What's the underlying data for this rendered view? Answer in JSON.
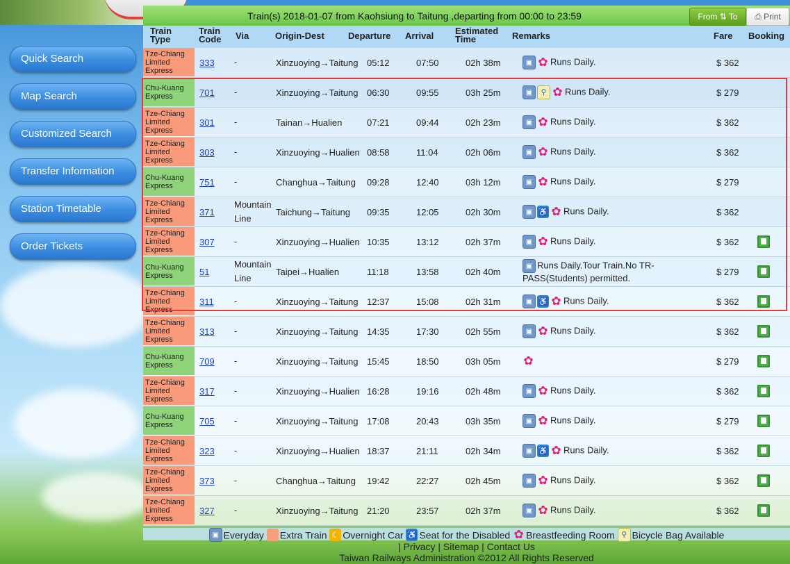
{
  "header": {
    "title": "Train(s) 2018-01-07 from Kaohsiung to Taitung ,departing from 00:00 to 23:59",
    "from_to_label": "From ⇅ To",
    "print_label": "Print"
  },
  "sidebar": {
    "items": [
      {
        "label": "Quick Search"
      },
      {
        "label": "Map Search"
      },
      {
        "label": "Customized Search"
      },
      {
        "label": "Transfer Information"
      },
      {
        "label": "Station Timetable"
      },
      {
        "label": "Order Tickets"
      }
    ]
  },
  "columns": {
    "train_type": "Train Type",
    "train_code": "Train Code",
    "via": "Via",
    "origin_dest": "Origin-Dest",
    "departure": "Departure",
    "arrival": "Arrival",
    "estimated": "Estimated Time",
    "remarks": "Remarks",
    "fare": "Fare",
    "booking": "Booking"
  },
  "rows": [
    {
      "type": "Tze-Chiang Limited Express",
      "kind": "tz",
      "code": "333",
      "via": "-",
      "od": "Xinzuoying→Taitung",
      "dep": "05:12",
      "arr": "07:50",
      "est": "02h 38m",
      "icons": [
        "everyday",
        "breast"
      ],
      "remark": "Runs Daily.",
      "fare": "$ 362",
      "booking": false
    },
    {
      "type": "Chu-Kuang Express",
      "kind": "ck",
      "code": "701",
      "via": "-",
      "od": "Xinzuoying→Taitung",
      "dep": "06:30",
      "arr": "09:55",
      "est": "03h 25m",
      "icons": [
        "everyday",
        "bike",
        "breast"
      ],
      "remark": "Runs Daily.",
      "fare": "$ 279",
      "booking": false
    },
    {
      "type": "Tze-Chiang Limited Express",
      "kind": "tz",
      "code": "301",
      "via": "-",
      "od": "Tainan→Hualien",
      "dep": "07:21",
      "arr": "09:44",
      "est": "02h 23m",
      "icons": [
        "everyday",
        "breast"
      ],
      "remark": "Runs Daily.",
      "fare": "$ 362",
      "booking": false
    },
    {
      "type": "Tze-Chiang Limited Express",
      "kind": "tz",
      "code": "303",
      "via": "-",
      "od": "Xinzuoying→Hualien",
      "dep": "08:58",
      "arr": "11:04",
      "est": "02h 06m",
      "icons": [
        "everyday",
        "breast"
      ],
      "remark": "Runs Daily.",
      "fare": "$ 362",
      "booking": false
    },
    {
      "type": "Chu-Kuang Express",
      "kind": "ck",
      "code": "751",
      "via": "-",
      "od": "Changhua→Taitung",
      "dep": "09:28",
      "arr": "12:40",
      "est": "03h 12m",
      "icons": [
        "everyday",
        "breast"
      ],
      "remark": "Runs Daily.",
      "fare": "$ 279",
      "booking": false
    },
    {
      "type": "Tze-Chiang Limited Express",
      "kind": "tz",
      "code": "371",
      "via": "Mountain Line",
      "od": "Taichung→Taitung",
      "dep": "09:35",
      "arr": "12:05",
      "est": "02h 30m",
      "icons": [
        "everyday",
        "disabled",
        "breast"
      ],
      "remark": "Runs Daily.",
      "fare": "$ 362",
      "booking": false
    },
    {
      "type": "Tze-Chiang Limited Express",
      "kind": "tz",
      "code": "307",
      "via": "-",
      "od": "Xinzuoying→Hualien",
      "dep": "10:35",
      "arr": "13:12",
      "est": "02h 37m",
      "icons": [
        "everyday",
        "breast"
      ],
      "remark": "Runs Daily.",
      "fare": "$ 362",
      "booking": true
    },
    {
      "type": "Chu-Kuang Express",
      "kind": "ck",
      "code": "51",
      "via": "Mountain Line",
      "od": "Taipei→Hualien",
      "dep": "11:18",
      "arr": "13:58",
      "est": "02h 40m",
      "icons": [
        "everyday"
      ],
      "remark": "Runs Daily.Tour Train.No TR-PASS(Students) permitted.",
      "fare": "$ 279",
      "booking": true
    },
    {
      "type": "Tze-Chiang Limited Express",
      "kind": "tz",
      "code": "311",
      "via": "-",
      "od": "Xinzuoying→Taitung",
      "dep": "12:37",
      "arr": "15:08",
      "est": "02h 31m",
      "icons": [
        "everyday",
        "disabled",
        "breast"
      ],
      "remark": "Runs Daily.",
      "fare": "$ 362",
      "booking": true
    },
    {
      "type": "Tze-Chiang Limited Express",
      "kind": "tz",
      "code": "313",
      "via": "-",
      "od": "Xinzuoying→Taitung",
      "dep": "14:35",
      "arr": "17:30",
      "est": "02h 55m",
      "icons": [
        "everyday",
        "breast"
      ],
      "remark": "Runs Daily.",
      "fare": "$ 362",
      "booking": true
    },
    {
      "type": "Chu-Kuang Express",
      "kind": "ck",
      "code": "709",
      "via": "-",
      "od": "Xinzuoying→Taitung",
      "dep": "15:45",
      "arr": "18:50",
      "est": "03h 05m",
      "icons": [
        "breast"
      ],
      "remark": "",
      "fare": "$ 279",
      "booking": true
    },
    {
      "type": "Tze-Chiang Limited Express",
      "kind": "tz",
      "code": "317",
      "via": "-",
      "od": "Xinzuoying→Hualien",
      "dep": "16:28",
      "arr": "19:16",
      "est": "02h 48m",
      "icons": [
        "everyday",
        "breast"
      ],
      "remark": "Runs Daily.",
      "fare": "$ 362",
      "booking": true
    },
    {
      "type": "Chu-Kuang Express",
      "kind": "ck",
      "code": "705",
      "via": "-",
      "od": "Xinzuoying→Taitung",
      "dep": "17:08",
      "arr": "20:43",
      "est": "03h 35m",
      "icons": [
        "everyday",
        "breast"
      ],
      "remark": "Runs Daily.",
      "fare": "$ 279",
      "booking": true
    },
    {
      "type": "Tze-Chiang Limited Express",
      "kind": "tz",
      "code": "323",
      "via": "-",
      "od": "Xinzuoying→Hualien",
      "dep": "18:37",
      "arr": "21:11",
      "est": "02h 34m",
      "icons": [
        "everyday",
        "disabled",
        "breast"
      ],
      "remark": "Runs Daily.",
      "fare": "$ 362",
      "booking": true
    },
    {
      "type": "Tze-Chiang Limited Express",
      "kind": "tz",
      "code": "373",
      "via": "-",
      "od": "Changhua→Taitung",
      "dep": "19:42",
      "arr": "22:27",
      "est": "02h 45m",
      "icons": [
        "everyday",
        "breast"
      ],
      "remark": "Runs Daily.",
      "fare": "$ 362",
      "booking": true
    },
    {
      "type": "Tze-Chiang Limited Express",
      "kind": "tz",
      "code": "327",
      "via": "-",
      "od": "Xinzuoying→Taitung",
      "dep": "21:20",
      "arr": "23:57",
      "est": "02h 37m",
      "icons": [
        "everyday",
        "breast"
      ],
      "remark": "Runs Daily.",
      "fare": "$ 362",
      "booking": true
    }
  ],
  "legend": {
    "everyday": "Everyday",
    "extra": "Extra Train",
    "overnight": "Overnight Car",
    "disabled": "Seat for the Disabled",
    "breast": "Breastfeeding Room",
    "bike": "Bicycle Bag Available"
  },
  "footer": {
    "links": [
      "Privacy",
      "Sitemap",
      "Contact Us"
    ],
    "copyright": "Taiwan Railways Administration ©2012 All Rights Reserved"
  },
  "colors": {
    "tze_chiang": "#f99b7a",
    "chu_kuang": "#8fd37a",
    "nav_button": "#3a8ce0",
    "title_bar": "#7fd25a",
    "highlight_border": "#e03a3a"
  }
}
